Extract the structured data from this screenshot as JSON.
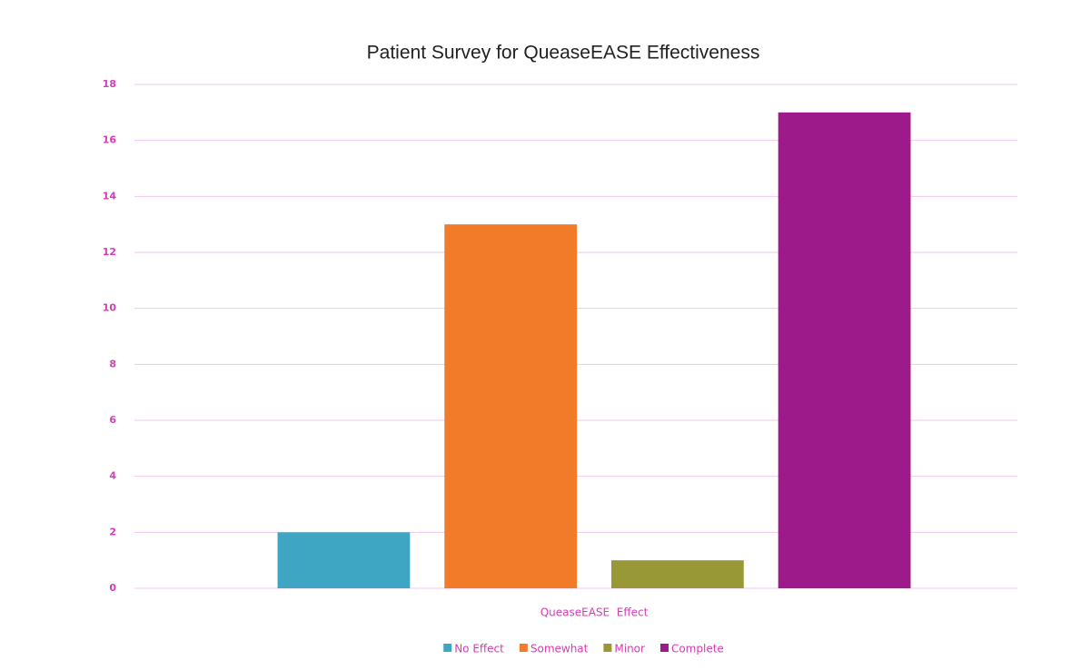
{
  "chart_data": {
    "type": "bar",
    "title": "Patient Survey for QueaseEASE Effectiveness",
    "categories": [
      "QueaseEASE  Effect"
    ],
    "series": [
      {
        "name": "No Effect",
        "color": "#3ea6c2",
        "values": [
          2
        ]
      },
      {
        "name": "Somewhat",
        "color": "#f27b29",
        "values": [
          13
        ]
      },
      {
        "name": "Minor",
        "color": "#989836",
        "values": [
          1
        ]
      },
      {
        "name": "Complete",
        "color": "#9c1a8a",
        "values": [
          17
        ]
      }
    ],
    "ylim": [
      0,
      18
    ],
    "yticks": [
      0,
      2,
      4,
      6,
      8,
      10,
      12,
      14,
      16,
      18
    ],
    "grid": true,
    "legend": "bottom"
  }
}
